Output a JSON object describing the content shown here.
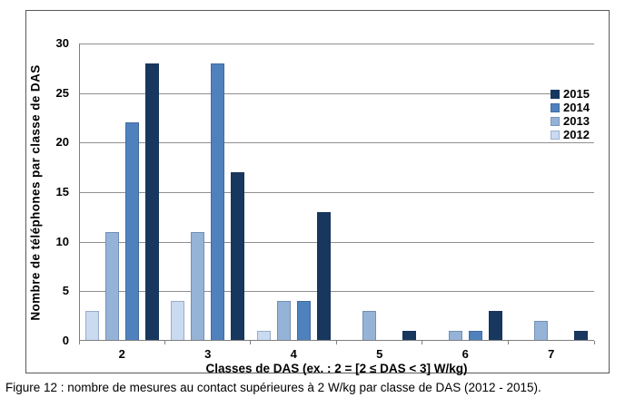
{
  "caption": "Figure 12 : nombre de mesures au contact supérieures à 2 W/kg par classe de DAS (2012 - 2015).",
  "chart_data": {
    "type": "bar",
    "title": "",
    "categories": [
      "2",
      "3",
      "4",
      "5",
      "6",
      "7"
    ],
    "series": [
      {
        "name": "2012",
        "color": "#C9DAF1",
        "values": [
          3,
          4,
          1,
          0,
          0,
          0
        ]
      },
      {
        "name": "2013",
        "color": "#95B3D7",
        "values": [
          11,
          11,
          4,
          3,
          1,
          2
        ]
      },
      {
        "name": "2014",
        "color": "#4F81BD",
        "values": [
          22,
          28,
          4,
          0,
          1,
          0
        ]
      },
      {
        "name": "2015",
        "color": "#17375E",
        "values": [
          28,
          17,
          13,
          1,
          3,
          1
        ]
      }
    ],
    "legend": {
      "position": "right",
      "order": [
        "2015",
        "2014",
        "2013",
        "2012"
      ]
    },
    "xlabel": "Classes de DAS (ex. : 2 = [2 ≤ DAS < 3] W/kg)",
    "ylabel": "Nombre de téléphones par classe de DAS",
    "ylim": [
      0,
      30
    ],
    "yticks": [
      0,
      5,
      10,
      15,
      20,
      25,
      30
    ],
    "grid": true,
    "colors": {
      "gridline": "#8f8f8f",
      "axis": "#7f7f7f",
      "figure_border": "#595959"
    }
  }
}
